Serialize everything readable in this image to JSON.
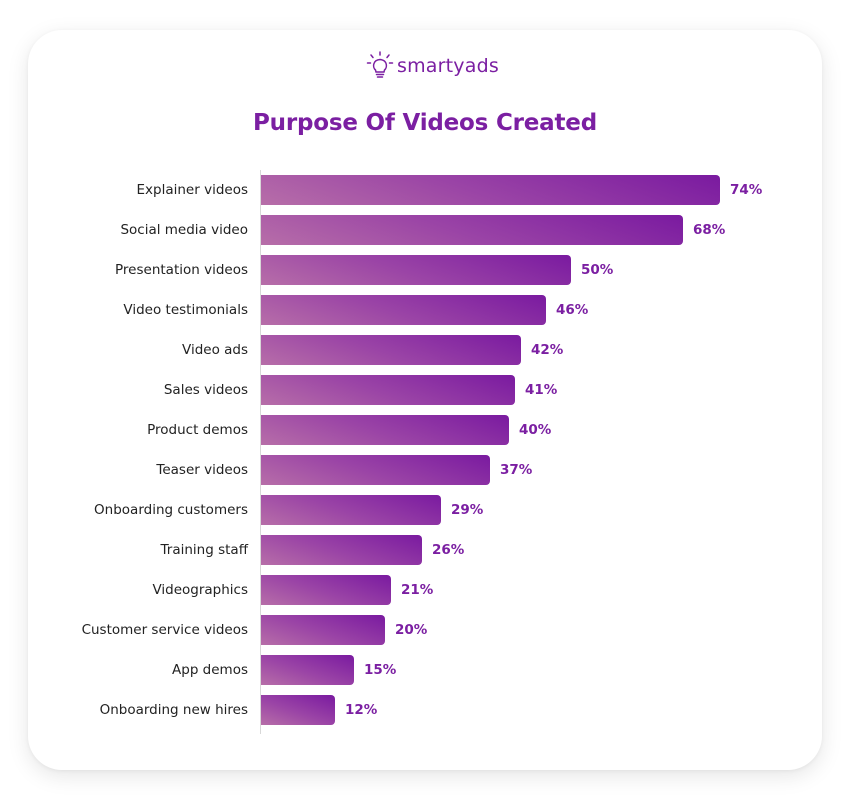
{
  "brand": {
    "name": "smartyads",
    "icon": "lightbulb-icon",
    "color": "#7b1fa2"
  },
  "chart_data": {
    "type": "bar",
    "orientation": "horizontal",
    "title": "Purpose Of Videos Created",
    "xlabel": "",
    "ylabel": "",
    "value_suffix": "%",
    "xlim": [
      0,
      100
    ],
    "grid": false,
    "legend": null,
    "categories": [
      "Explainer videos",
      "Social media video",
      "Presentation videos",
      "Video testimonials",
      "Video ads",
      "Sales videos",
      "Product demos",
      "Teaser videos",
      "Onboarding customers",
      "Training staff",
      "Videographics",
      "Customer service videos",
      "App demos",
      "Onboarding new hires"
    ],
    "values": [
      74,
      68,
      50,
      46,
      42,
      41,
      40,
      37,
      29,
      26,
      21,
      20,
      15,
      12
    ],
    "labels": [
      "74%",
      "68%",
      "50%",
      "46%",
      "42%",
      "41%",
      "40%",
      "37%",
      "29%",
      "26%",
      "21%",
      "20%",
      "15%",
      "12%"
    ],
    "bar_color": "#8e2fa4",
    "label_color": "#7b1fa2"
  }
}
